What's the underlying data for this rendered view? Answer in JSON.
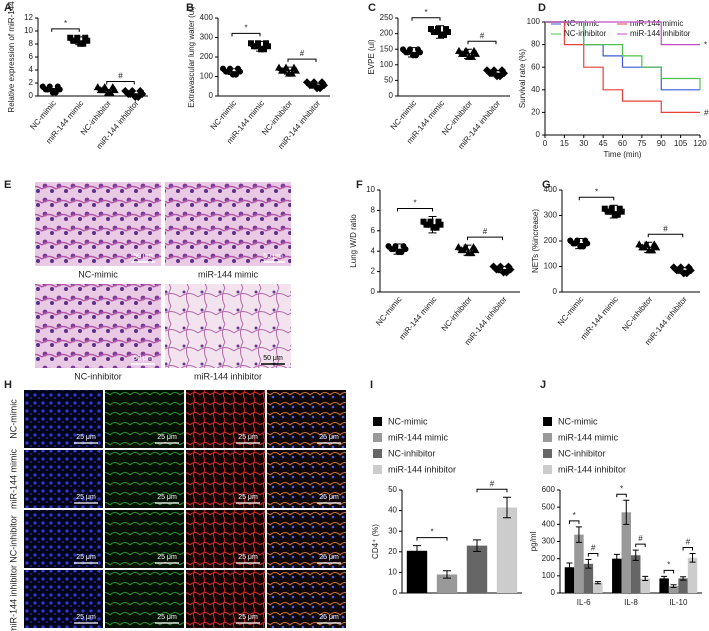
{
  "chart_data": [
    {
      "type": "dot",
      "label": "A",
      "ylabel": "Relative expression of miR-144",
      "categories": [
        "NC-mimic",
        "miR-144 mimic",
        "NC-inhibitor",
        "miR-144 inhibitor"
      ],
      "values": [
        1.0,
        8.5,
        0.9,
        0.3
      ],
      "errors": [
        0.15,
        0.6,
        0.1,
        0.05
      ],
      "ylim": [
        0,
        12
      ],
      "yticks": [
        0,
        2,
        4,
        6,
        8,
        10,
        12
      ],
      "brackets": [
        {
          "pair": [
            0,
            1
          ],
          "label": "*"
        },
        {
          "pair": [
            2,
            3
          ],
          "label": "#"
        }
      ]
    },
    {
      "type": "dot",
      "label": "B",
      "ylabel": "Extravascular lung water (ul)",
      "categories": [
        "NC-mimic",
        "miR-144 mimic",
        "NC-inhibitor",
        "miR-144 inhibitor"
      ],
      "values": [
        125,
        255,
        130,
        55
      ],
      "errors": [
        15,
        25,
        18,
        8
      ],
      "ylim": [
        0,
        400
      ],
      "yticks": [
        0,
        100,
        200,
        300,
        400
      ],
      "brackets": [
        {
          "pair": [
            0,
            1
          ],
          "label": "*"
        },
        {
          "pair": [
            2,
            3
          ],
          "label": "#"
        }
      ]
    },
    {
      "type": "dot",
      "label": "C",
      "ylabel": "EVPE (ul)",
      "categories": [
        "NC-mimic",
        "miR-144 mimic",
        "NC-inhibitor",
        "miR-144 inhibitor"
      ],
      "values": [
        140,
        205,
        135,
        73
      ],
      "errors": [
        15,
        20,
        15,
        8
      ],
      "ylim": [
        0,
        250
      ],
      "yticks": [
        0,
        50,
        100,
        150,
        200,
        250
      ],
      "brackets": [
        {
          "pair": [
            0,
            1
          ],
          "label": "*"
        },
        {
          "pair": [
            2,
            3
          ],
          "label": "#"
        }
      ]
    },
    {
      "type": "line",
      "label": "D",
      "xlabel": "Time (min)",
      "ylabel": "Survival rate (%)",
      "x": [
        0,
        15,
        30,
        45,
        60,
        75,
        90,
        105,
        120
      ],
      "xlim": [
        0,
        120
      ],
      "xticks": [
        0,
        15,
        30,
        45,
        60,
        75,
        90,
        105,
        120
      ],
      "ylim": [
        0,
        100
      ],
      "yticks": [
        0,
        20,
        40,
        60,
        80,
        100
      ],
      "series": [
        {
          "name": "NC-mimic",
          "color": "#3b5bd9",
          "values": [
            100,
            100,
            80,
            70,
            60,
            60,
            40,
            40,
            40
          ]
        },
        {
          "name": "miR-144 mimic",
          "color": "#e8413a",
          "values": [
            100,
            80,
            60,
            40,
            30,
            30,
            20,
            20,
            20
          ],
          "annotation": "#"
        },
        {
          "name": "NC-inhibitor",
          "color": "#4cc24c",
          "values": [
            100,
            100,
            80,
            80,
            70,
            60,
            50,
            50,
            40
          ]
        },
        {
          "name": "miR-144 inhibitor",
          "color": "#c24cc2",
          "values": [
            100,
            100,
            100,
            100,
            100,
            100,
            80,
            80,
            80
          ],
          "annotation": "*"
        }
      ]
    },
    {
      "type": "dot",
      "label": "F",
      "ylabel": "Lung W/D ratio",
      "categories": [
        "NC-mimic",
        "miR-144 mimic",
        "NC-inhibitor",
        "miR-144 inhibitor"
      ],
      "values": [
        4.2,
        6.6,
        4.1,
        2.2
      ],
      "errors": [
        0.5,
        0.8,
        0.5,
        0.3
      ],
      "ylim": [
        0,
        10
      ],
      "yticks": [
        0,
        2,
        4,
        6,
        8,
        10
      ],
      "brackets": [
        {
          "pair": [
            0,
            1
          ],
          "label": "*"
        },
        {
          "pair": [
            2,
            3
          ],
          "label": "#"
        }
      ]
    },
    {
      "type": "dot",
      "label": "G",
      "ylabel": "NETs (%increase)",
      "categories": [
        "NC-mimic",
        "miR-144 mimic",
        "NC-inhibitor",
        "miR-144 inhibitor"
      ],
      "values": [
        190,
        315,
        175,
        85
      ],
      "errors": [
        20,
        25,
        20,
        10
      ],
      "ylim": [
        0,
        400
      ],
      "yticks": [
        0,
        100,
        200,
        300,
        400
      ],
      "brackets": [
        {
          "pair": [
            0,
            1
          ],
          "label": "*"
        },
        {
          "pair": [
            2,
            3
          ],
          "label": "#"
        }
      ]
    },
    {
      "type": "bar",
      "label": "I",
      "ylabel": "CD4⁺ (%)",
      "categories": [
        "NC-mimic",
        "miR-144 mimic",
        "NC-inhibitor",
        "miR-144 inhibitor"
      ],
      "colors": [
        "#000000",
        "#999999",
        "#666666",
        "#cccccc"
      ],
      "values": [
        20.5,
        9,
        23,
        41.5
      ],
      "errors": [
        2.5,
        1.8,
        2.8,
        5
      ],
      "ylim": [
        0,
        50
      ],
      "yticks": [
        0,
        10,
        20,
        30,
        40,
        50
      ],
      "brackets": [
        {
          "pair": [
            0,
            1
          ],
          "label": "*"
        },
        {
          "pair": [
            2,
            3
          ],
          "label": "#"
        }
      ]
    },
    {
      "type": "groupbar",
      "label": "J",
      "ylabel": "pg/ml",
      "categories": [
        "IL-6",
        "IL-8",
        "IL-10"
      ],
      "ylim": [
        0,
        600
      ],
      "yticks": [
        0,
        100,
        200,
        300,
        400,
        500,
        600
      ],
      "series": [
        {
          "name": "NC-mimic",
          "color": "#000000",
          "values": [
            150,
            200,
            85
          ],
          "errors": [
            25,
            25,
            12
          ]
        },
        {
          "name": "miR-144 mimic",
          "color": "#999999",
          "values": [
            340,
            470,
            40
          ],
          "errors": [
            45,
            70,
            8
          ]
        },
        {
          "name": "NC-inhibitor",
          "color": "#666666",
          "values": [
            170,
            220,
            85
          ],
          "errors": [
            25,
            30,
            10
          ]
        },
        {
          "name": "miR-144 inhibitor",
          "color": "#cccccc",
          "values": [
            60,
            85,
            205
          ],
          "errors": [
            6,
            12,
            25
          ]
        }
      ],
      "brackets": [
        {
          "group": 0,
          "pair": [
            0,
            1
          ],
          "label": "*"
        },
        {
          "group": 0,
          "pair": [
            2,
            3
          ],
          "label": "#"
        },
        {
          "group": 1,
          "pair": [
            0,
            1
          ],
          "label": "*"
        },
        {
          "group": 1,
          "pair": [
            2,
            3
          ],
          "label": "#"
        },
        {
          "group": 2,
          "pair": [
            0,
            1
          ],
          "label": "*"
        },
        {
          "group": 2,
          "pair": [
            2,
            3
          ],
          "label": "#"
        }
      ]
    }
  ],
  "images": {
    "E": {
      "label": "E",
      "captions": [
        "NC-mimic",
        "miR-144 mimic",
        "NC-inhibitor",
        "miR-144 inhibitor"
      ],
      "scale": "50 μm"
    },
    "H": {
      "label": "H",
      "rows": [
        "NC-mimic",
        "miR-144 mimic",
        "NC-inhibitor",
        "miR-144 inhibitor"
      ],
      "scale": "25 μm"
    }
  }
}
